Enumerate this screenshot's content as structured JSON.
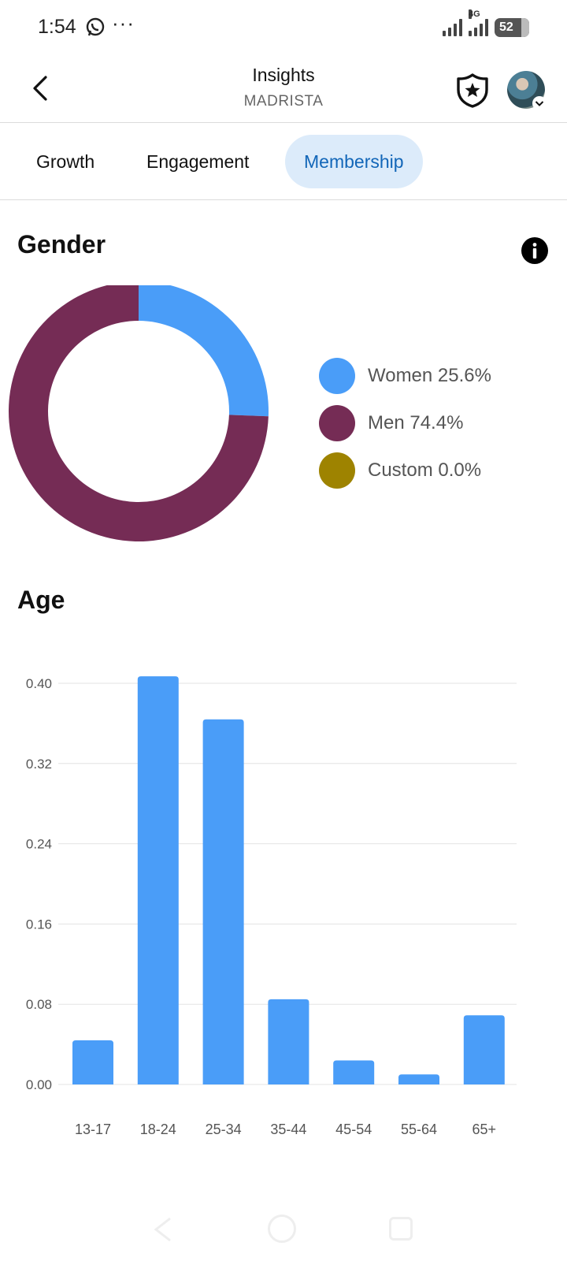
{
  "status_bar": {
    "time": "1:54",
    "dots": "···",
    "net_label": "4G",
    "battery_level": "52"
  },
  "header": {
    "title": "Insights",
    "subtitle": "MADRISTA"
  },
  "tabs": [
    {
      "label": "Growth",
      "active": false
    },
    {
      "label": "Engagement",
      "active": false
    },
    {
      "label": "Membership",
      "active": true
    }
  ],
  "gender": {
    "title": "Gender",
    "legend": [
      {
        "label": "Women 25.6%",
        "color": "#4a9df8"
      },
      {
        "label": "Men 74.4%",
        "color": "#752c55"
      },
      {
        "label": "Custom 0.0%",
        "color": "#9e8300"
      }
    ]
  },
  "age": {
    "title": "Age"
  },
  "chart_data": [
    {
      "type": "pie",
      "title": "Gender",
      "donut": true,
      "categories": [
        "Women",
        "Men",
        "Custom"
      ],
      "values": [
        25.6,
        74.4,
        0.0
      ],
      "colors": [
        "#4a9df8",
        "#752c55",
        "#9e8300"
      ]
    },
    {
      "type": "bar",
      "title": "Age",
      "categories": [
        "13-17",
        "18-24",
        "25-34",
        "35-44",
        "45-54",
        "55-64",
        "65+"
      ],
      "values": [
        0.044,
        0.407,
        0.364,
        0.085,
        0.024,
        0.01,
        0.069
      ],
      "ylim": [
        0,
        0.4
      ],
      "yticks": [
        "0.00",
        "0.08",
        "0.16",
        "0.24",
        "0.32",
        "0.40"
      ],
      "color": "#4a9df8",
      "grid": true
    }
  ]
}
